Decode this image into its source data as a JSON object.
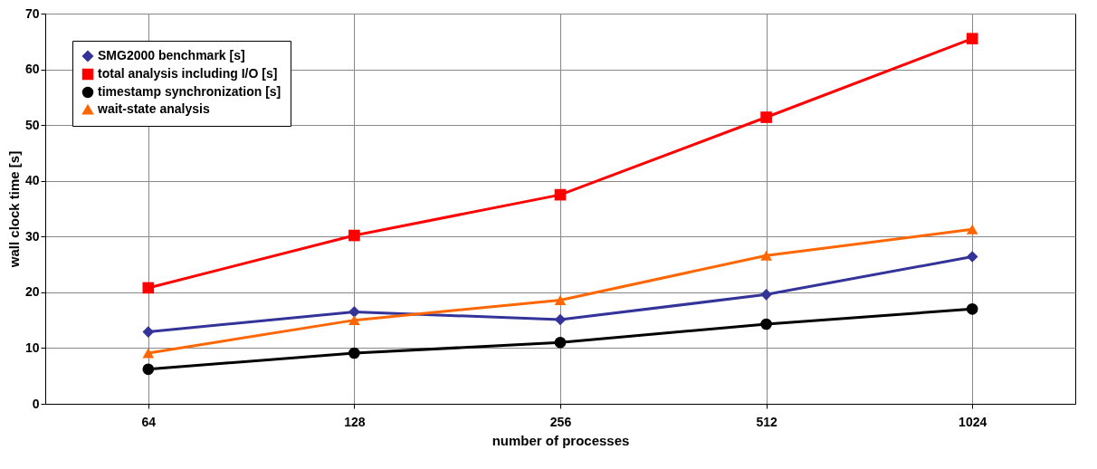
{
  "chart_data": {
    "type": "line",
    "xlabel": "number of processes",
    "ylabel": "wall clock time [s]",
    "categories": [
      "64",
      "128",
      "256",
      "512",
      "1024"
    ],
    "ylim": [
      0,
      70
    ],
    "yticks": [
      0,
      10,
      20,
      30,
      40,
      50,
      60,
      70
    ],
    "grid": true,
    "legend": "top left",
    "line_style": "solid",
    "series": [
      {
        "name": "SMG2000 benchmark [s]",
        "color": "#333399",
        "marker": "diamond",
        "values": [
          12.9,
          16.5,
          15.1,
          19.6,
          26.4
        ]
      },
      {
        "name": "total analysis including I/O [s]",
        "color": "#ff0000",
        "marker": "square",
        "values": [
          20.8,
          30.2,
          37.5,
          51.4,
          65.5
        ]
      },
      {
        "name": "timestamp synchronization [s]",
        "color": "#000000",
        "marker": "circle",
        "values": [
          6.2,
          9.1,
          11.0,
          14.3,
          17.0
        ]
      },
      {
        "name": "wait-state analysis",
        "color": "#ff6600",
        "marker": "triangle",
        "values": [
          9.1,
          15.0,
          18.6,
          26.6,
          31.3
        ]
      }
    ]
  }
}
